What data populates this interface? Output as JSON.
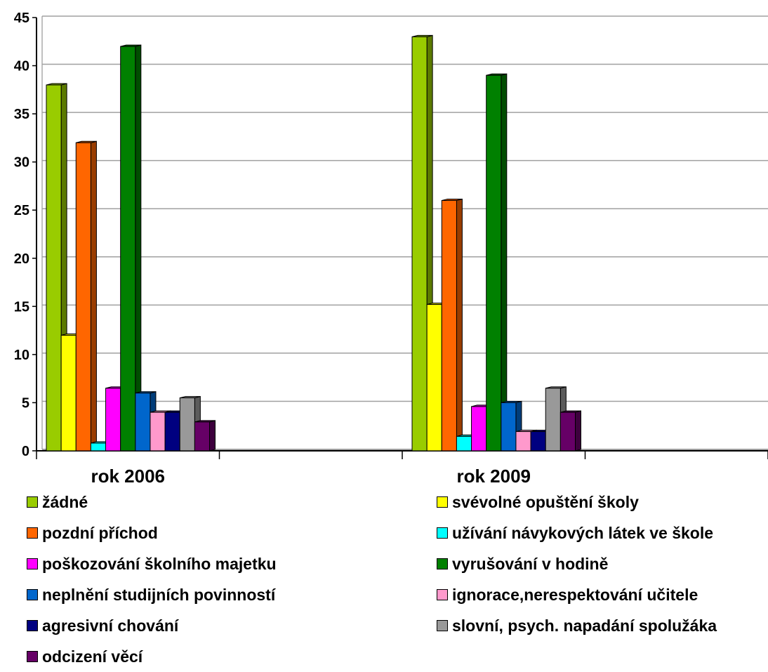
{
  "chart_data": {
    "type": "bar",
    "categories": [
      "rok 2006",
      "rok 2009"
    ],
    "ylim": [
      0,
      45
    ],
    "yticks": [
      0,
      5,
      10,
      15,
      20,
      25,
      30,
      35,
      40,
      45
    ],
    "grid": true,
    "legend_placement": "bottom",
    "series": [
      {
        "name": "žádné",
        "color": "#99cc00",
        "values": [
          38,
          43
        ]
      },
      {
        "name": "svévolné opuštění školy",
        "color": "#ffff00",
        "values": [
          12,
          15.2
        ]
      },
      {
        "name": "pozdní příchod",
        "color": "#ff6600",
        "values": [
          32,
          26
        ]
      },
      {
        "name": "užívání návykových látek ve škole",
        "color": "#00ffff",
        "values": [
          0.8,
          1.5
        ]
      },
      {
        "name": "poškozování školního majetku",
        "color": "#ff00ff",
        "values": [
          6.5,
          4.6
        ]
      },
      {
        "name": "vyrušování v hodině",
        "color": "#008000",
        "values": [
          42,
          39
        ]
      },
      {
        "name": "neplnění studijních povinností",
        "color": "#0066cc",
        "values": [
          6,
          5
        ]
      },
      {
        "name": "ignorace,nerespektování učitele",
        "color": "#ff99cc",
        "values": [
          4,
          2
        ]
      },
      {
        "name": "agresivní chování",
        "color": "#000080",
        "values": [
          4,
          2
        ]
      },
      {
        "name": "slovní, psych. napadání spolužáka",
        "color": "#999999",
        "values": [
          5.5,
          6.5
        ]
      },
      {
        "name": "odcizení věcí",
        "color": "#660066",
        "values": [
          3,
          4
        ]
      }
    ]
  }
}
